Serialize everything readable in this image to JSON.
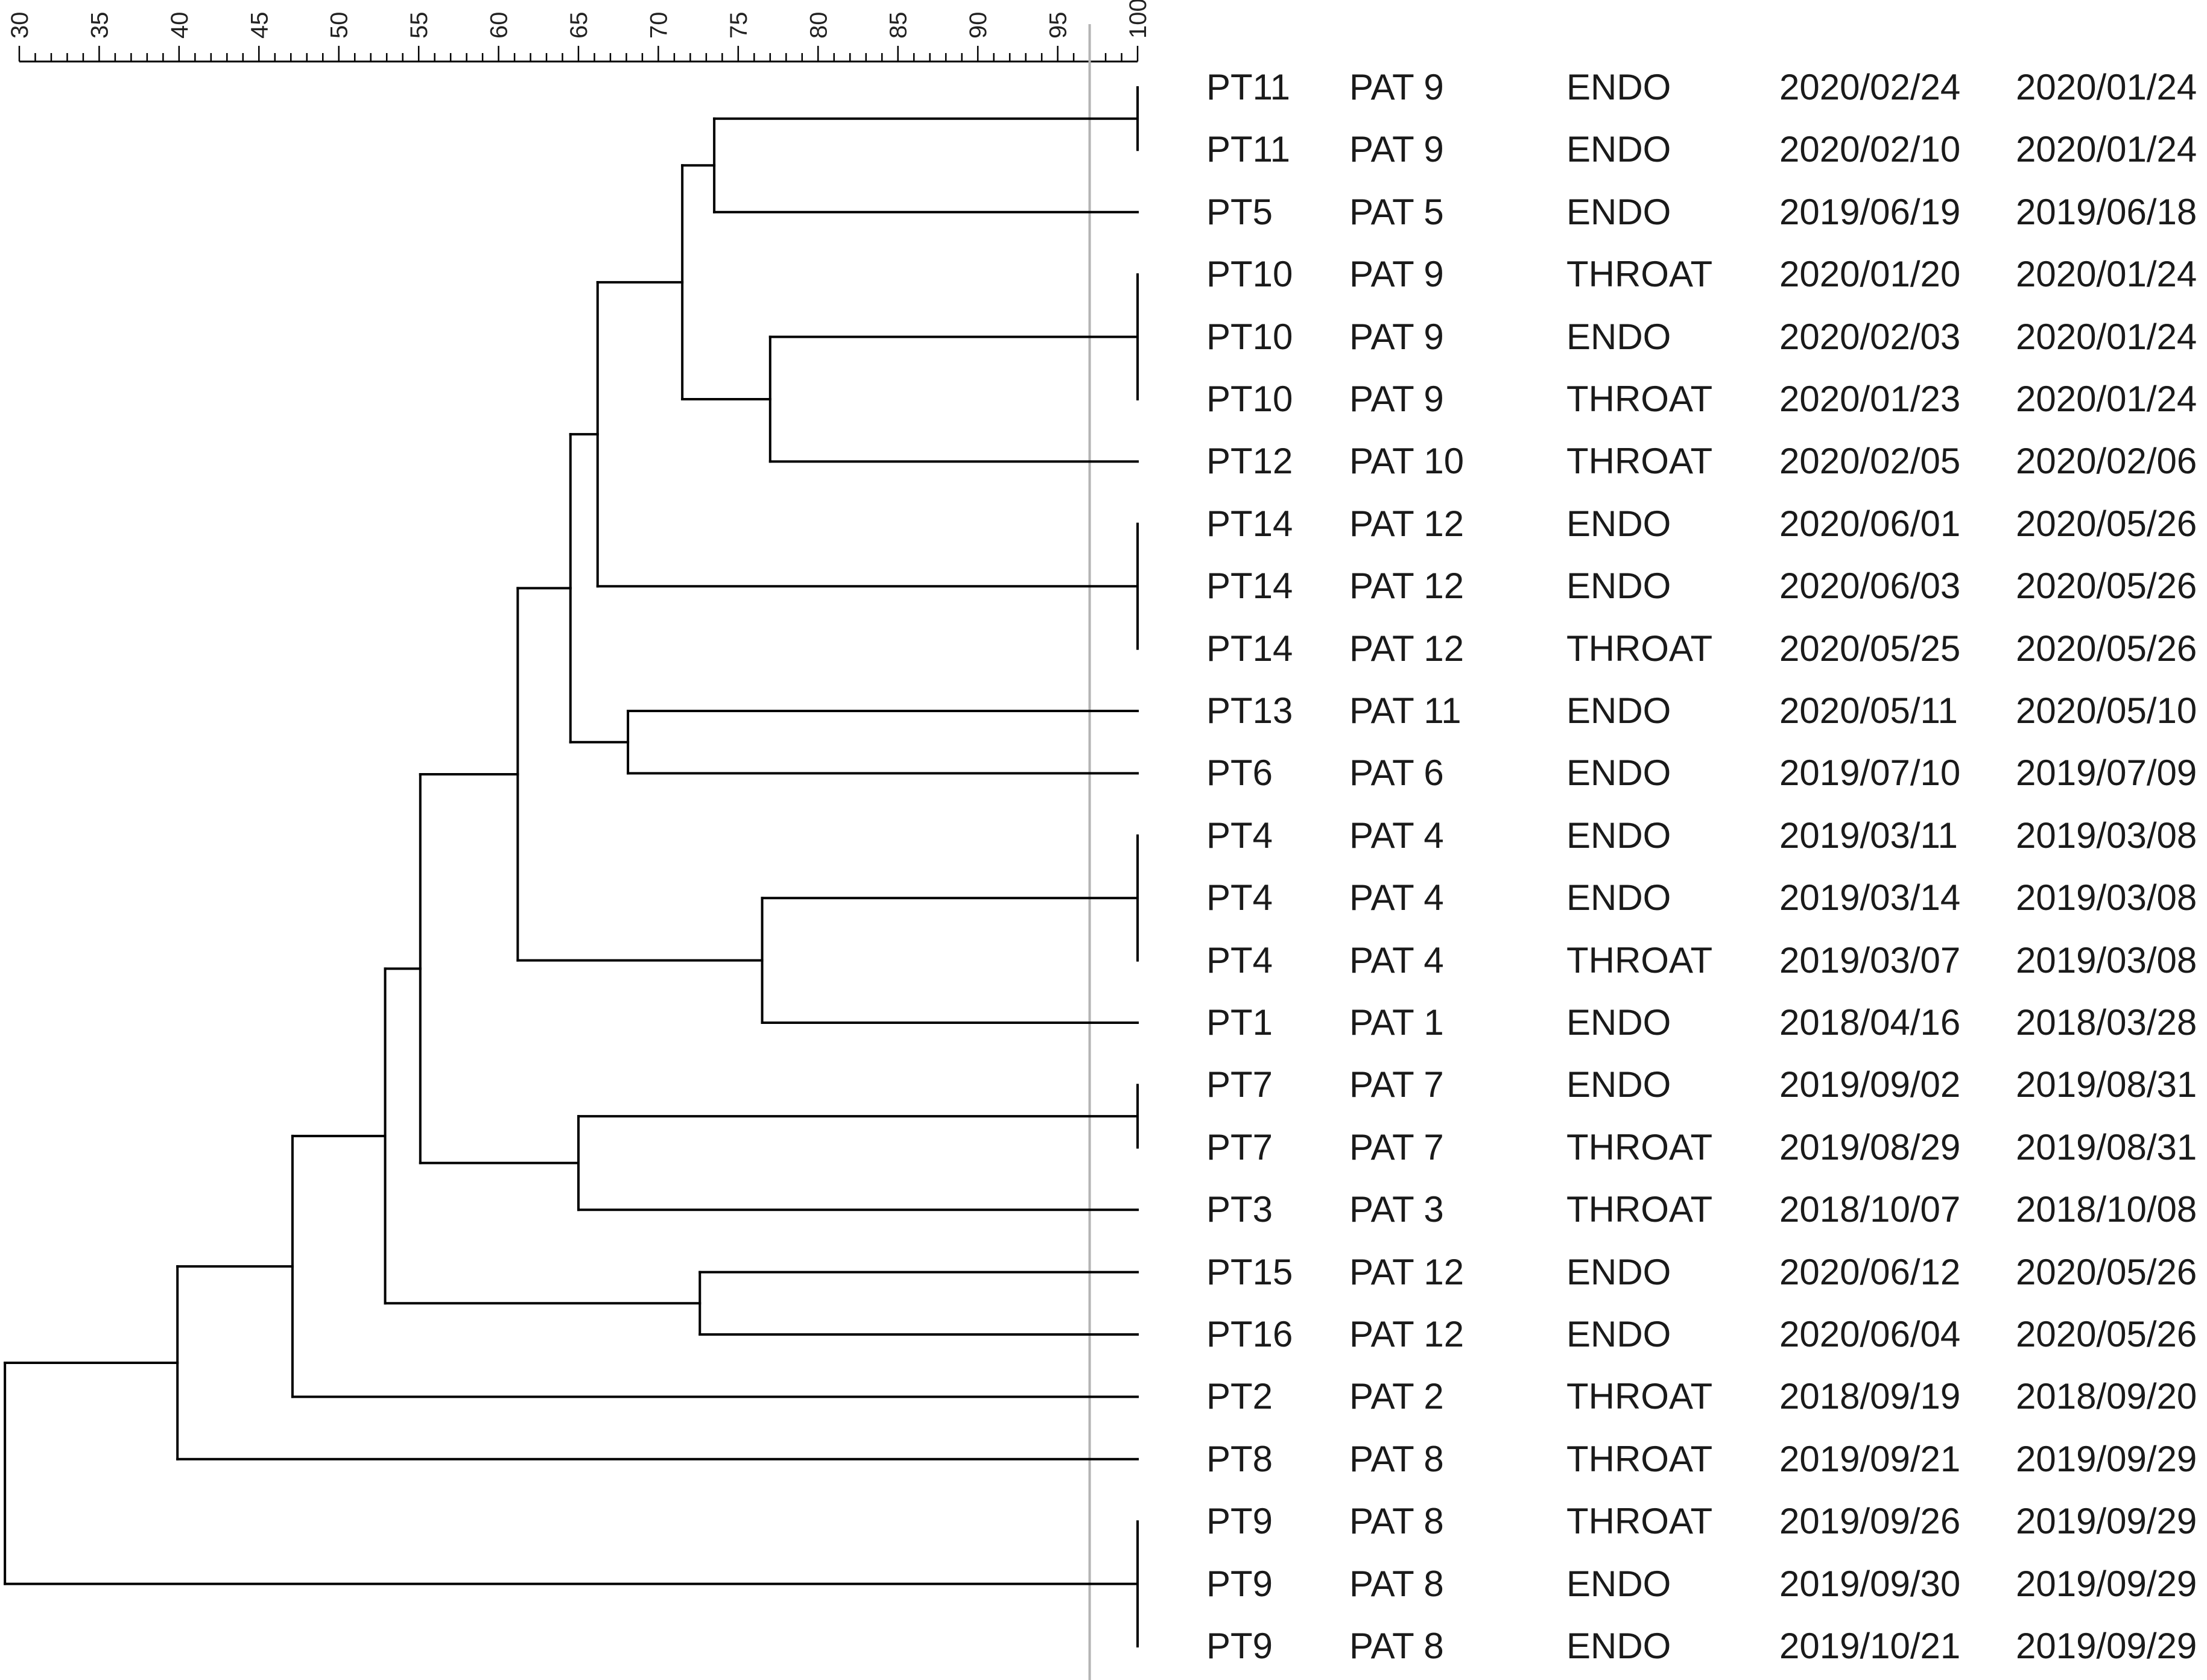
{
  "chart_data": {
    "type": "dendrogram",
    "title": "",
    "axis": {
      "min": 30,
      "max": 100,
      "major_ticks": [
        30,
        35,
        40,
        45,
        50,
        55,
        60,
        65,
        70,
        75,
        80,
        85,
        90,
        95,
        100
      ],
      "tick_labels": [
        "30",
        "35",
        "40",
        "45",
        "50",
        "55",
        "60",
        "65",
        "70",
        "75",
        "80",
        "85",
        "90",
        "95",
        "100"
      ],
      "minor_step": 1
    },
    "cutoff": 97,
    "line_color": "#000000",
    "cutoff_color": "#b4b4b4",
    "leaves": [
      {
        "isolate": "PT11",
        "patient": "PAT 9",
        "site": "ENDO",
        "date1": "2020/02/24",
        "date2": "2020/01/24"
      },
      {
        "isolate": "PT11",
        "patient": "PAT 9",
        "site": "ENDO",
        "date1": "2020/02/10",
        "date2": "2020/01/24"
      },
      {
        "isolate": "PT5",
        "patient": "PAT 5",
        "site": "ENDO",
        "date1": "2019/06/19",
        "date2": "2019/06/18"
      },
      {
        "isolate": "PT10",
        "patient": "PAT 9",
        "site": "THROAT",
        "date1": "2020/01/20",
        "date2": "2020/01/24"
      },
      {
        "isolate": "PT10",
        "patient": "PAT 9",
        "site": "ENDO",
        "date1": "2020/02/03",
        "date2": "2020/01/24"
      },
      {
        "isolate": "PT10",
        "patient": "PAT 9",
        "site": "THROAT",
        "date1": "2020/01/23",
        "date2": "2020/01/24"
      },
      {
        "isolate": "PT12",
        "patient": "PAT 10",
        "site": "THROAT",
        "date1": "2020/02/05",
        "date2": "2020/02/06"
      },
      {
        "isolate": "PT14",
        "patient": "PAT 12",
        "site": "ENDO",
        "date1": "2020/06/01",
        "date2": "2020/05/26"
      },
      {
        "isolate": "PT14",
        "patient": "PAT 12",
        "site": "ENDO",
        "date1": "2020/06/03",
        "date2": "2020/05/26"
      },
      {
        "isolate": "PT14",
        "patient": "PAT 12",
        "site": "THROAT",
        "date1": "2020/05/25",
        "date2": "2020/05/26"
      },
      {
        "isolate": "PT13",
        "patient": "PAT 11",
        "site": "ENDO",
        "date1": "2020/05/11",
        "date2": "2020/05/10"
      },
      {
        "isolate": "PT6",
        "patient": "PAT 6",
        "site": "ENDO",
        "date1": "2019/07/10",
        "date2": "2019/07/09"
      },
      {
        "isolate": "PT4",
        "patient": "PAT 4",
        "site": "ENDO",
        "date1": "2019/03/11",
        "date2": "2019/03/08"
      },
      {
        "isolate": "PT4",
        "patient": "PAT 4",
        "site": "ENDO",
        "date1": "2019/03/14",
        "date2": "2019/03/08"
      },
      {
        "isolate": "PT4",
        "patient": "PAT 4",
        "site": "THROAT",
        "date1": "2019/03/07",
        "date2": "2019/03/08"
      },
      {
        "isolate": "PT1",
        "patient": "PAT 1",
        "site": "ENDO",
        "date1": "2018/04/16",
        "date2": "2018/03/28"
      },
      {
        "isolate": "PT7",
        "patient": "PAT 7",
        "site": "ENDO",
        "date1": "2019/09/02",
        "date2": "2019/08/31"
      },
      {
        "isolate": "PT7",
        "patient": "PAT 7",
        "site": "THROAT",
        "date1": "2019/08/29",
        "date2": "2019/08/31"
      },
      {
        "isolate": "PT3",
        "patient": "PAT 3",
        "site": "THROAT",
        "date1": "2018/10/07",
        "date2": "2018/10/08"
      },
      {
        "isolate": "PT15",
        "patient": "PAT 12",
        "site": "ENDO",
        "date1": "2020/06/12",
        "date2": "2020/05/26"
      },
      {
        "isolate": "PT16",
        "patient": "PAT 12",
        "site": "ENDO",
        "date1": "2020/06/04",
        "date2": "2020/05/26"
      },
      {
        "isolate": "PT2",
        "patient": "PAT 2",
        "site": "THROAT",
        "date1": "2018/09/19",
        "date2": "2018/09/20"
      },
      {
        "isolate": "PT8",
        "patient": "PAT 8",
        "site": "THROAT",
        "date1": "2019/09/21",
        "date2": "2019/09/29"
      },
      {
        "isolate": "PT9",
        "patient": "PAT 8",
        "site": "THROAT",
        "date1": "2019/09/26",
        "date2": "2019/09/29"
      },
      {
        "isolate": "PT9",
        "patient": "PAT 8",
        "site": "ENDO",
        "date1": "2019/09/30",
        "date2": "2019/09/29"
      },
      {
        "isolate": "PT9",
        "patient": "PAT 8",
        "site": "ENDO",
        "date1": "2019/10/21",
        "date2": "2019/09/29"
      }
    ],
    "clusters": [
      {
        "id": "A",
        "similarity": 100,
        "children": [
          0,
          1
        ]
      },
      {
        "id": "B",
        "similarity": 73.5,
        "children": [
          "A",
          2
        ]
      },
      {
        "id": "C",
        "similarity": 100,
        "children": [
          3,
          4,
          5
        ]
      },
      {
        "id": "D",
        "similarity": 77.0,
        "children": [
          "C",
          6
        ]
      },
      {
        "id": "E",
        "similarity": 71.5,
        "children": [
          "B",
          "D"
        ]
      },
      {
        "id": "F",
        "similarity": 100,
        "children": [
          7,
          8,
          9
        ]
      },
      {
        "id": "G",
        "similarity": 66.2,
        "children": [
          "E",
          "F"
        ]
      },
      {
        "id": "H",
        "similarity": 68.1,
        "children": [
          10,
          11
        ]
      },
      {
        "id": "I",
        "similarity": 64.5,
        "children": [
          "G",
          "H"
        ]
      },
      {
        "id": "J",
        "similarity": 100,
        "children": [
          12,
          13,
          14
        ]
      },
      {
        "id": "K",
        "similarity": 76.5,
        "children": [
          "J",
          15
        ]
      },
      {
        "id": "L",
        "similarity": 61.2,
        "children": [
          "I",
          "K"
        ]
      },
      {
        "id": "M",
        "similarity": 100,
        "children": [
          16,
          17
        ]
      },
      {
        "id": "N",
        "similarity": 65.0,
        "children": [
          "M",
          18
        ]
      },
      {
        "id": "O",
        "similarity": 55.1,
        "children": [
          "L",
          "N"
        ]
      },
      {
        "id": "P",
        "similarity": 72.6,
        "children": [
          19,
          20
        ]
      },
      {
        "id": "Q",
        "similarity": 52.9,
        "children": [
          "O",
          "P"
        ]
      },
      {
        "id": "R",
        "similarity": 47.1,
        "children": [
          "Q",
          21
        ]
      },
      {
        "id": "S",
        "similarity": 39.9,
        "children": [
          "R",
          22
        ]
      },
      {
        "id": "T",
        "similarity": 100,
        "children": [
          23,
          24,
          25
        ]
      },
      {
        "id": "U",
        "similarity": 29.1,
        "children": [
          "S",
          "T"
        ]
      }
    ]
  }
}
